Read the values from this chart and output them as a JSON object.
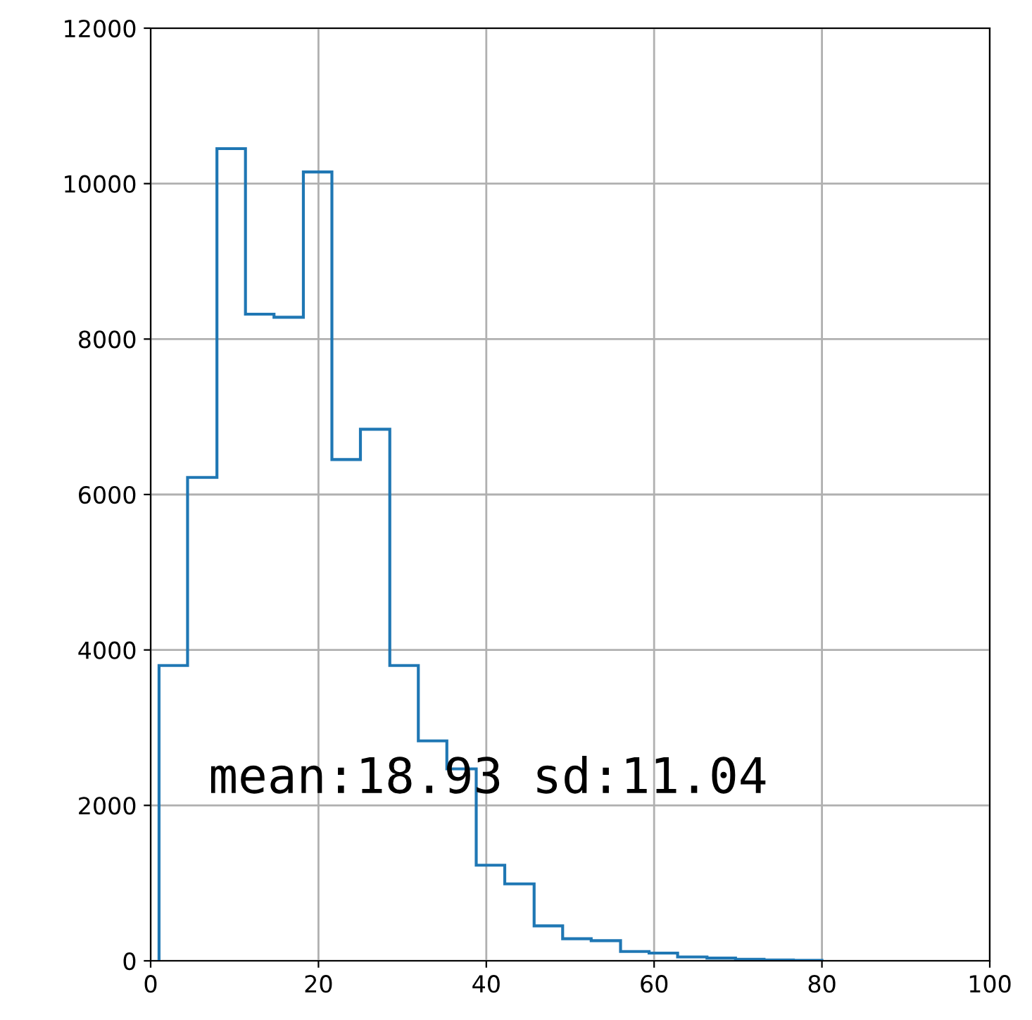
{
  "chart_data": {
    "type": "histogram",
    "bins": [
      1.0,
      4.4,
      7.9,
      11.3,
      14.7,
      18.2,
      21.6,
      25.0,
      28.5,
      31.9,
      35.3,
      38.8,
      42.2,
      45.7,
      49.1,
      52.5,
      56.0,
      59.4,
      62.8,
      66.3,
      69.7,
      73.1,
      76.6,
      80.0
    ],
    "values": [
      3800,
      6220,
      10450,
      8320,
      8280,
      10150,
      6450,
      6840,
      3800,
      2830,
      2470,
      1230,
      990,
      450,
      285,
      260,
      120,
      100,
      50,
      35,
      20,
      10,
      5
    ],
    "color": "#1f77b4",
    "xlim": [
      0,
      100
    ],
    "xticks": [
      0,
      20,
      40,
      60,
      80,
      100
    ],
    "ylim": [
      0,
      12000
    ],
    "yticks": [
      0,
      2000,
      4000,
      6000,
      8000,
      10000,
      12000
    ],
    "grid": true,
    "annotations": [
      "mean:18.93 sd:11.04"
    ]
  }
}
